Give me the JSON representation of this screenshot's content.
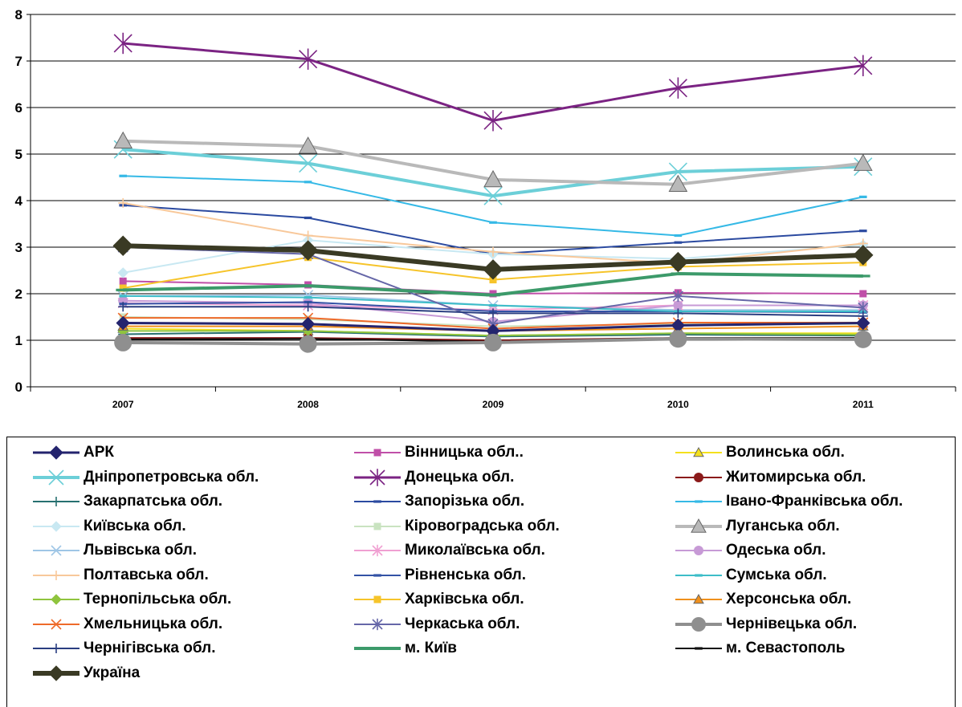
{
  "chart_data": {
    "type": "line",
    "title": "",
    "xlabel": "",
    "ylabel": "",
    "categories": [
      "2007",
      "2008",
      "2009",
      "2010",
      "2011"
    ],
    "ylim": [
      0,
      8
    ],
    "yticks": [
      "0",
      "1",
      "2",
      "3",
      "4",
      "5",
      "6",
      "7",
      "8"
    ],
    "grid": "horizontal",
    "legend_position": "bottom",
    "series": [
      {
        "name": "АРК",
        "values": [
          1.37,
          1.35,
          1.2,
          1.32,
          1.37
        ],
        "color": "#24246e",
        "marker": "diamond",
        "width": 3
      },
      {
        "name": "Вінницька обл..",
        "values": [
          2.27,
          2.19,
          2.0,
          2.02,
          2.0
        ],
        "color": "#c04fa8",
        "marker": "square",
        "width": 2
      },
      {
        "name": "Волинська обл.",
        "values": [
          1.25,
          1.2,
          1.1,
          1.15,
          1.15
        ],
        "color": "#f4e01c",
        "marker": "triangle",
        "width": 2
      },
      {
        "name": "Дніпропетровська обл.",
        "values": [
          5.1,
          4.8,
          4.1,
          4.62,
          4.73
        ],
        "color": "#6ccfd8",
        "marker": "x",
        "width": 4
      },
      {
        "name": "Донецька обл.",
        "values": [
          7.38,
          7.04,
          5.72,
          6.42,
          6.9
        ],
        "color": "#7b2383",
        "marker": "star",
        "width": 3
      },
      {
        "name": "Житомирська обл.",
        "values": [
          1.05,
          1.05,
          1.0,
          1.05,
          1.05
        ],
        "color": "#8b1a1a",
        "marker": "circle",
        "width": 2
      },
      {
        "name": "Закарпатська обл.",
        "values": [
          1.13,
          1.18,
          1.08,
          1.12,
          1.1
        ],
        "color": "#277070",
        "marker": "plus",
        "width": 2
      },
      {
        "name": "Запорізька обл.",
        "values": [
          3.9,
          3.63,
          2.85,
          3.1,
          3.35
        ],
        "color": "#2b4aa0",
        "marker": "dash",
        "width": 2
      },
      {
        "name": "Івано-Франківська обл.",
        "values": [
          4.53,
          4.4,
          3.53,
          3.25,
          4.08
        ],
        "color": "#35b9e6",
        "marker": "dash",
        "width": 2
      },
      {
        "name": "Київська обл.",
        "values": [
          2.45,
          3.15,
          2.85,
          2.75,
          3.05
        ],
        "color": "#c8e8f2",
        "marker": "diamond",
        "width": 2
      },
      {
        "name": "Кіровоградська обл.",
        "values": [
          1.5,
          1.45,
          1.3,
          1.35,
          1.35
        ],
        "color": "#c9e3c0",
        "marker": "square",
        "width": 2
      },
      {
        "name": "Луганська обл.",
        "values": [
          5.28,
          5.17,
          4.45,
          4.35,
          4.8
        ],
        "color": "#b9b9b9",
        "marker": "triangle",
        "width": 4
      },
      {
        "name": "Львівська обл.",
        "values": [
          1.95,
          1.97,
          1.75,
          1.65,
          1.65
        ],
        "color": "#9fc6e6",
        "marker": "x",
        "width": 2
      },
      {
        "name": "Миколаївська обл.",
        "values": [
          1.8,
          1.75,
          1.65,
          1.75,
          1.75
        ],
        "color": "#f0a0d2",
        "marker": "star",
        "width": 2
      },
      {
        "name": "Одеська обл.",
        "values": [
          1.85,
          1.8,
          1.4,
          1.75,
          1.75
        ],
        "color": "#c79ad6",
        "marker": "circle",
        "width": 2
      },
      {
        "name": "Полтавська обл.",
        "values": [
          3.95,
          3.25,
          2.9,
          2.65,
          3.08
        ],
        "color": "#f8c89a",
        "marker": "plus",
        "width": 2
      },
      {
        "name": "Рівненська обл.",
        "values": [
          1.78,
          1.82,
          1.62,
          1.62,
          1.6
        ],
        "color": "#3352a5",
        "marker": "dash",
        "width": 2
      },
      {
        "name": "Сумська обл.",
        "values": [
          1.95,
          1.92,
          1.75,
          1.62,
          1.62
        ],
        "color": "#3dbdc8",
        "marker": "dash",
        "width": 2
      },
      {
        "name": "Тернопільська обл.",
        "values": [
          1.2,
          1.2,
          1.1,
          1.15,
          1.12
        ],
        "color": "#8fc43e",
        "marker": "diamond",
        "width": 2
      },
      {
        "name": "Харківська обл.",
        "values": [
          2.12,
          2.78,
          2.3,
          2.58,
          2.67
        ],
        "color": "#f6c42a",
        "marker": "square",
        "width": 2
      },
      {
        "name": "Херсонська обл.",
        "values": [
          1.3,
          1.3,
          1.2,
          1.25,
          1.3
        ],
        "color": "#f0901c",
        "marker": "triangle",
        "width": 2
      },
      {
        "name": "Хмельницька обл.",
        "values": [
          1.48,
          1.48,
          1.25,
          1.38,
          1.38
        ],
        "color": "#ee6a2a",
        "marker": "x",
        "width": 2
      },
      {
        "name": "Черкаська обл.",
        "values": [
          3.0,
          2.85,
          1.35,
          1.95,
          1.7
        ],
        "color": "#6667a8",
        "marker": "star",
        "width": 2
      },
      {
        "name": "Чернівецька обл.",
        "values": [
          0.95,
          0.92,
          0.95,
          1.03,
          1.02
        ],
        "color": "#8f8f8f",
        "marker": "circle",
        "width": 4
      },
      {
        "name": "Чернігівська обл.",
        "values": [
          1.72,
          1.72,
          1.58,
          1.58,
          1.52
        ],
        "color": "#2a3e80",
        "marker": "plus",
        "width": 2
      },
      {
        "name": "м. Київ",
        "values": [
          2.08,
          2.17,
          1.97,
          2.43,
          2.38
        ],
        "color": "#3c9a6a",
        "marker": "dash",
        "width": 4
      },
      {
        "name": "м. Севастополь",
        "values": [
          1.02,
          1.03,
          0.97,
          1.05,
          1.05
        ],
        "color": "#111111",
        "marker": "dash",
        "width": 2
      },
      {
        "name": "Україна",
        "values": [
          3.03,
          2.93,
          2.52,
          2.68,
          2.83
        ],
        "color": "#3a3a24",
        "marker": "diamond",
        "width": 6
      }
    ]
  }
}
